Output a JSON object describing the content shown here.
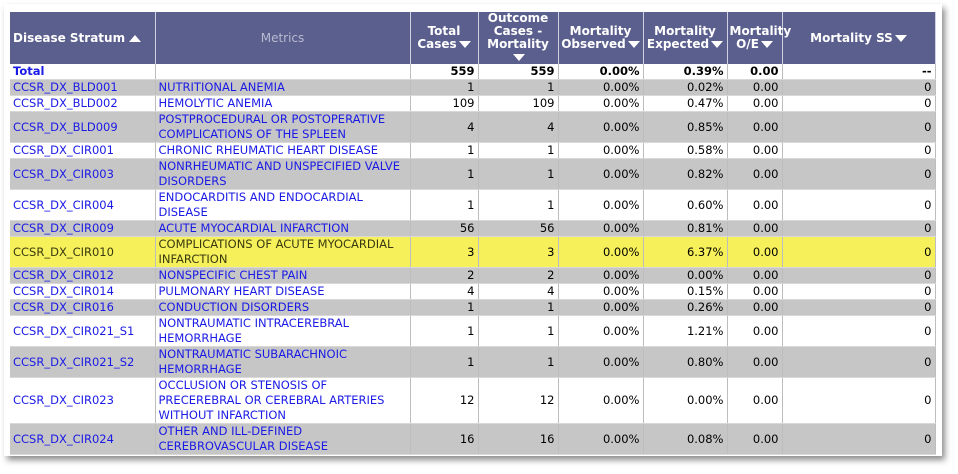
{
  "table": {
    "columns": [
      "Disease Stratum",
      "Metrics",
      "Total Cases",
      "Outcome Cases - Mortality",
      "Mortality Observed",
      "Mortality Expected",
      "Mortality O/E",
      "Mortality SS"
    ],
    "sort": [
      "asc",
      null,
      "desc",
      "desc",
      "desc",
      "desc",
      "desc",
      "desc"
    ],
    "rows": [
      {
        "total": true,
        "cells": [
          "Total",
          null,
          559,
          559,
          "0.00%",
          "0.39%",
          "0.00",
          "--"
        ]
      },
      {
        "cells": [
          "CCSR_DX_BLD001",
          "NUTRITIONAL ANEMIA",
          1,
          1,
          "0.00%",
          "0.02%",
          "0.00",
          "0"
        ]
      },
      {
        "cells": [
          "CCSR_DX_BLD002",
          "HEMOLYTIC ANEMIA",
          109,
          109,
          "0.00%",
          "0.47%",
          "0.00",
          "0"
        ]
      },
      {
        "cells": [
          "CCSR_DX_BLD009",
          "POSTPROCEDURAL OR POSTOPERATIVE COMPLICATIONS OF THE SPLEEN",
          4,
          4,
          "0.00%",
          "0.85%",
          "0.00",
          "0"
        ]
      },
      {
        "cells": [
          "CCSR_DX_CIR001",
          "CHRONIC RHEUMATIC HEART DISEASE",
          1,
          1,
          "0.00%",
          "0.58%",
          "0.00",
          "0"
        ]
      },
      {
        "cells": [
          "CCSR_DX_CIR003",
          "NONRHEUMATIC AND UNSPECIFIED VALVE DISORDERS",
          1,
          1,
          "0.00%",
          "0.82%",
          "0.00",
          "0"
        ]
      },
      {
        "cells": [
          "CCSR_DX_CIR004",
          "ENDOCARDITIS AND ENDOCARDIAL DISEASE",
          1,
          1,
          "0.00%",
          "0.60%",
          "0.00",
          "0"
        ]
      },
      {
        "cells": [
          "CCSR_DX_CIR009",
          "ACUTE MYOCARDIAL INFARCTION",
          56,
          56,
          "0.00%",
          "0.81%",
          "0.00",
          "0"
        ]
      },
      {
        "selected": true,
        "cells": [
          "CCSR_DX_CIR010",
          "COMPLICATIONS OF ACUTE MYOCARDIAL INFARCTION",
          3,
          3,
          "0.00%",
          "6.37%",
          "0.00",
          "0"
        ]
      },
      {
        "cells": [
          "CCSR_DX_CIR012",
          "NONSPECIFIC CHEST PAIN",
          2,
          2,
          "0.00%",
          "0.00%",
          "0.00",
          "0"
        ]
      },
      {
        "cells": [
          "CCSR_DX_CIR014",
          "PULMONARY HEART DISEASE",
          4,
          4,
          "0.00%",
          "0.15%",
          "0.00",
          "0"
        ]
      },
      {
        "cells": [
          "CCSR_DX_CIR016",
          "CONDUCTION DISORDERS",
          1,
          1,
          "0.00%",
          "0.26%",
          "0.00",
          "0"
        ]
      },
      {
        "cells": [
          "CCSR_DX_CIR021_S1",
          "NONTRAUMATIC INTRACEREBRAL HEMORRHAGE",
          1,
          1,
          "0.00%",
          "1.21%",
          "0.00",
          "0"
        ]
      },
      {
        "cells": [
          "CCSR_DX_CIR021_S2",
          "NONTRAUMATIC SUBARACHNOIC HEMORRHAGE",
          1,
          1,
          "0.00%",
          "0.80%",
          "0.00",
          "0"
        ]
      },
      {
        "cells": [
          "CCSR_DX_CIR023",
          "OCCLUSION OR STENOSIS OF PRECEREBRAL OR CEREBRAL ARTERIES WITHOUT INFARCTION",
          12,
          12,
          "0.00%",
          "0.00%",
          "0.00",
          "0"
        ]
      },
      {
        "cells": [
          "CCSR_DX_CIR024",
          "OTHER AND ILL-DEFINED CEREBROVASCULAR DISEASE",
          16,
          16,
          "0.00%",
          "0.08%",
          "0.00",
          "0"
        ]
      }
    ]
  }
}
